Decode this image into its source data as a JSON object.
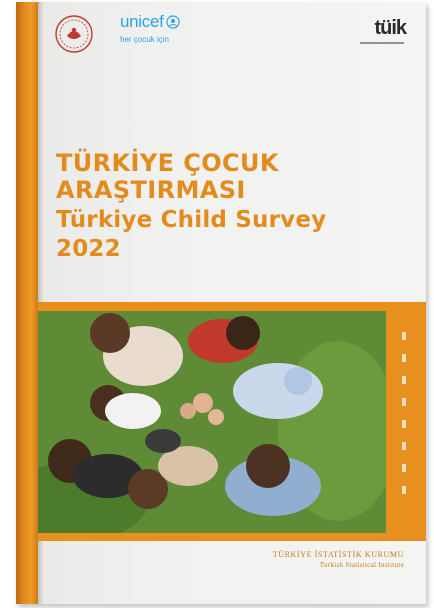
{
  "logos": {
    "ministry": "ministry-emblem",
    "unicef_word": "unicef",
    "unicef_globe": "unicef-globe-icon",
    "unicef_tagline": "her çocuk için",
    "tuik_word": "tüik"
  },
  "title": {
    "line1": "TÜRKİYE ÇOCUK",
    "line2": "ARAŞTIRMASI",
    "line3": "Türkiye Child Survey",
    "line4": "2022"
  },
  "footer": {
    "tr": "TÜRKİYE İSTATİSTİK KURUMU",
    "en": "Turkish Statistical Institute"
  },
  "colors": {
    "accent": "#e38b1d",
    "unicef_blue": "#2aa3e6",
    "grass": "#5f8a36"
  }
}
